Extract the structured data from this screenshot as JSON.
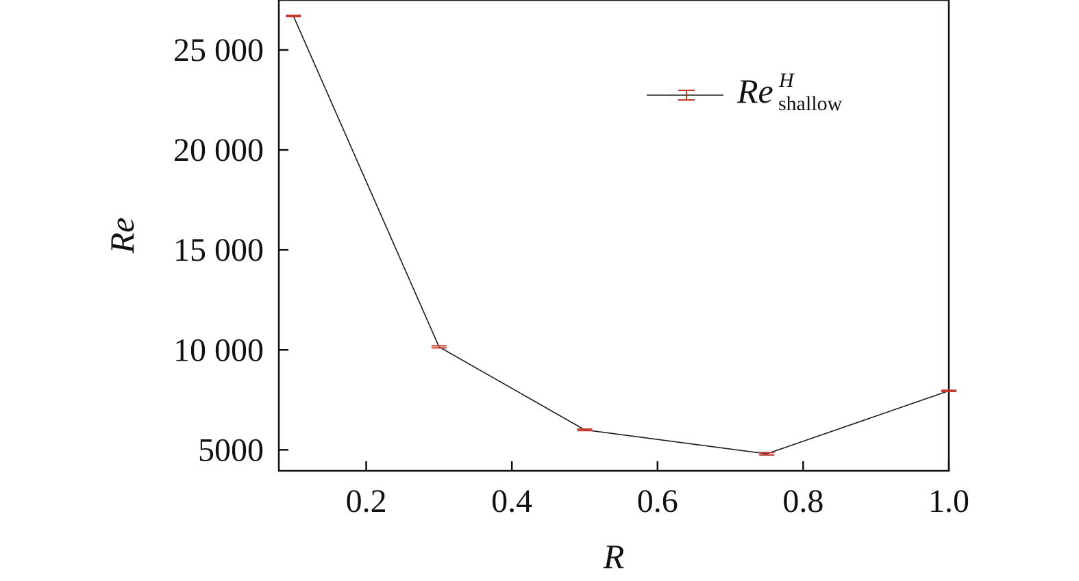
{
  "chart_data": {
    "type": "line",
    "xlabel": "R",
    "ylabel": "Re",
    "xlim": [
      0.08,
      1.0
    ],
    "ylim": [
      3950,
      27500
    ],
    "xticks": [
      0.2,
      0.4,
      0.6,
      0.8,
      1.0
    ],
    "xtick_labels": [
      "0.2",
      "0.4",
      "0.6",
      "0.8",
      "1.0"
    ],
    "yticks": [
      5000,
      10000,
      15000,
      20000,
      25000
    ],
    "ytick_labels": [
      "5000",
      "10 000",
      "15 000",
      "20 000",
      "25 000"
    ],
    "grid": false,
    "legend_position": "top-right",
    "series": [
      {
        "name": "Re",
        "legend_superscript": "H",
        "legend_subscript": "shallow",
        "x": [
          0.1,
          0.3,
          0.5,
          0.75,
          1.0
        ],
        "y": [
          26700,
          10150,
          6000,
          4800,
          7950
        ],
        "error": [
          30,
          50,
          40,
          60,
          30
        ],
        "line_color": "#1a1a1a",
        "marker_color": "#c0392b"
      }
    ]
  }
}
